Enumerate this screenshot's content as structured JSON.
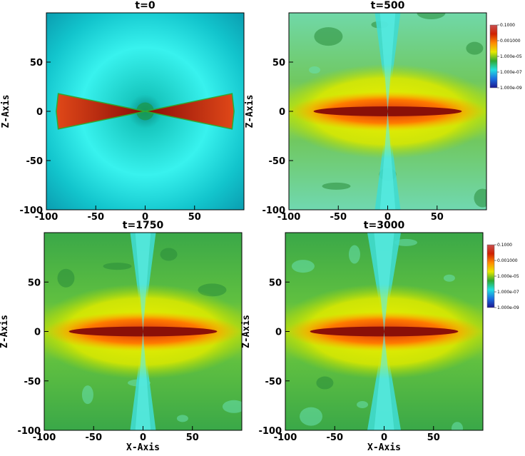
{
  "chart_data": [
    {
      "type": "heatmap",
      "title": "t=0",
      "y_label": "Z-Axis",
      "xlim": [
        -100,
        100
      ],
      "ylim": [
        -100,
        100
      ],
      "xticks": [
        -100,
        -50,
        0,
        50
      ],
      "yticks": [
        -100,
        -50,
        0,
        50
      ]
    },
    {
      "type": "heatmap",
      "title": "t=500",
      "y_label": "Z-Axis",
      "xlim": [
        -100,
        100
      ],
      "ylim": [
        -100,
        100
      ],
      "xticks": [
        -100,
        -50,
        0,
        50
      ],
      "yticks": [
        -100,
        -50,
        0,
        50
      ],
      "colorbar": {
        "log": true,
        "lim": [
          1e-09,
          0.1
        ],
        "colors": [
          "#1c1890",
          "#1a6ee0",
          "#22e0e0",
          "#2ea830",
          "#e8e800",
          "#ff8a00",
          "#d02000",
          "#c85050"
        ],
        "ticks": [
          {
            "value": 0.1,
            "label": "0.1000"
          },
          {
            "value": 0.001,
            "label": "0.001000"
          },
          {
            "value": 1e-05,
            "label": "1.000e-05"
          },
          {
            "value": 1e-07,
            "label": "1.000e-07"
          },
          {
            "value": 1e-09,
            "label": "1.000e-09"
          }
        ]
      }
    },
    {
      "type": "heatmap",
      "title": "t=1750",
      "x_label": "X-Axis",
      "y_label": "Z-Axis",
      "xlim": [
        -100,
        100
      ],
      "ylim": [
        -100,
        100
      ],
      "xticks": [
        -100,
        -50,
        0,
        50
      ],
      "yticks": [
        -100,
        -50,
        0,
        50
      ]
    },
    {
      "type": "heatmap",
      "title": "t=3000",
      "x_label": "X-Axis",
      "y_label": "Z-Axis",
      "xlim": [
        -100,
        100
      ],
      "ylim": [
        -100,
        100
      ],
      "xticks": [
        -100,
        -50,
        0,
        50
      ],
      "yticks": [
        -100,
        -50,
        0,
        50
      ],
      "colorbar": {
        "log": true,
        "lim": [
          1e-09,
          0.1
        ],
        "colors": [
          "#1c1890",
          "#1a6ee0",
          "#22e0e0",
          "#2ea830",
          "#e8e800",
          "#ff8a00",
          "#d02000",
          "#c85050"
        ],
        "ticks": [
          {
            "value": 0.1,
            "label": "0.1000"
          },
          {
            "value": 0.001,
            "label": "0.001000"
          },
          {
            "value": 1e-05,
            "label": "1.000e-05"
          },
          {
            "value": 1e-07,
            "label": "1.000e-07"
          },
          {
            "value": 1e-09,
            "label": "1.000e-09"
          }
        ]
      }
    }
  ]
}
